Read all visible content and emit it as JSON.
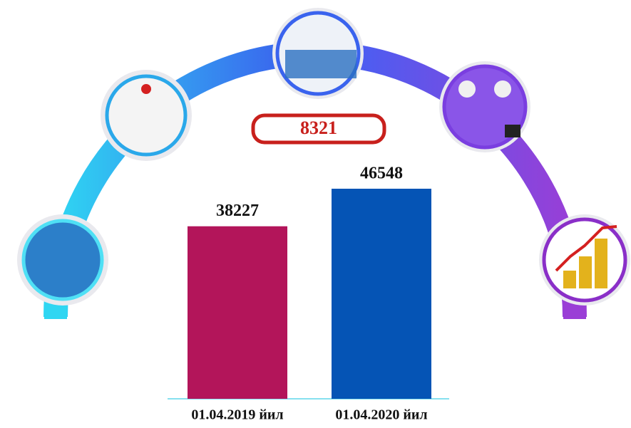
{
  "chart_data": {
    "type": "bar",
    "categories": [
      "01.04.2019 йил",
      "01.04.2020 йил"
    ],
    "values": [
      38227,
      46548
    ],
    "colors": [
      "#b3155a",
      "#0554b5"
    ],
    "difference": 8321
  }
}
